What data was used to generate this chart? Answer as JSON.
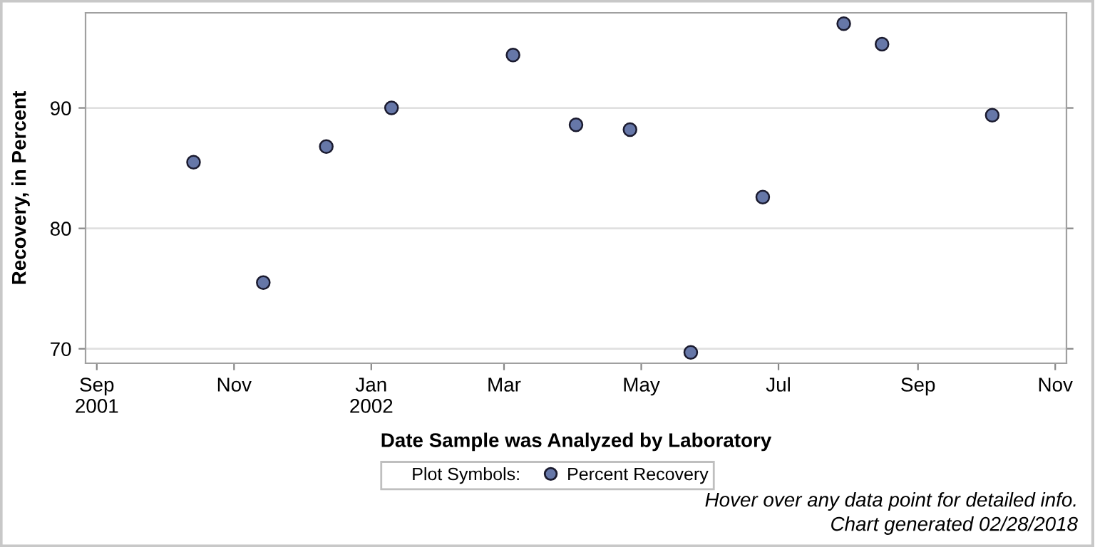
{
  "chart_data": {
    "type": "scatter",
    "xlabel": "Date Sample was Analyzed by Laboratory",
    "ylabel": "Recovery, in Percent",
    "legend_title": "Plot Symbols:",
    "x": [
      "2001-10-14",
      "2001-11-14",
      "2001-12-12",
      "2002-01-10",
      "2002-03-05",
      "2002-04-02",
      "2002-04-26",
      "2002-05-23",
      "2002-06-24",
      "2002-07-30",
      "2002-08-16",
      "2002-10-04"
    ],
    "series": [
      {
        "name": "Percent Recovery",
        "color": "#6677a8",
        "values": [
          85.5,
          75.5,
          86.8,
          90.0,
          94.4,
          88.6,
          88.2,
          69.7,
          82.6,
          97.0,
          95.3,
          89.4
        ]
      }
    ],
    "xlim": [
      "2001-08-27",
      "2002-11-06"
    ],
    "xticks": [
      {
        "value": "2001-09-01",
        "label": "Sep\n2001"
      },
      {
        "value": "2001-11-01",
        "label": "Nov"
      },
      {
        "value": "2002-01-01",
        "label": "Jan\n2002"
      },
      {
        "value": "2002-03-01",
        "label": "Mar"
      },
      {
        "value": "2002-05-01",
        "label": "May"
      },
      {
        "value": "2002-07-01",
        "label": "Jul"
      },
      {
        "value": "2002-09-01",
        "label": "Sep"
      },
      {
        "value": "2002-11-01",
        "label": "Nov"
      }
    ],
    "ylim": [
      68.8,
      97.9
    ],
    "yticks": [
      70,
      80,
      90
    ],
    "grid": "y",
    "legend": "bottom",
    "marker": "circle",
    "annotations": [
      "Hover over any data point for detailed info.",
      "Chart generated 02/28/2018"
    ]
  }
}
